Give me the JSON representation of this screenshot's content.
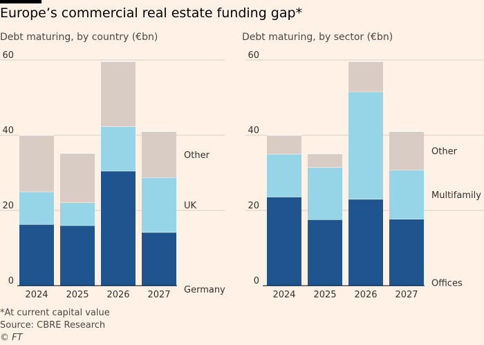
{
  "title": "Europe’s commercial real estate funding gap*",
  "footnote": "*At current capital value",
  "source": "Source: CBRE Research",
  "copyright": "© FT",
  "colors": {
    "background": "#fff1e5",
    "bottom_series": "#1f558e",
    "middle_series": "#96d4e8",
    "top_series": "#d8ccc5",
    "gridline": "#d9cec4",
    "baseline": "#000000",
    "text": "#33302e"
  },
  "chart_data": [
    {
      "type": "bar",
      "stacked": true,
      "title": "Debt maturing, by country (€bn)",
      "categories": [
        "2024",
        "2025",
        "2026",
        "2027"
      ],
      "series": [
        {
          "name": "Germany",
          "values": [
            16.3,
            16,
            30.5,
            14.2
          ]
        },
        {
          "name": "UK",
          "values": [
            8.7,
            6.1,
            11.8,
            14.6
          ]
        },
        {
          "name": "Other",
          "values": [
            15,
            13.1,
            17.3,
            12.2
          ]
        }
      ],
      "ylim": [
        0,
        60
      ],
      "yticks": [
        0,
        20,
        40,
        60
      ],
      "grid": true,
      "legend": "right"
    },
    {
      "type": "bar",
      "stacked": true,
      "title": "Debt maturing, by sector (€bn)",
      "categories": [
        "2024",
        "2025",
        "2026",
        "2027"
      ],
      "series": [
        {
          "name": "Offices",
          "values": [
            23.6,
            17.6,
            23,
            17.7
          ]
        },
        {
          "name": "Multifamily",
          "values": [
            11.4,
            13.9,
            28.6,
            13.1
          ]
        },
        {
          "name": "Other",
          "values": [
            5,
            3.6,
            8,
            10.2
          ]
        }
      ],
      "ylim": [
        0,
        60
      ],
      "yticks": [
        0,
        20,
        40,
        60
      ],
      "grid": true,
      "legend": "right"
    }
  ]
}
